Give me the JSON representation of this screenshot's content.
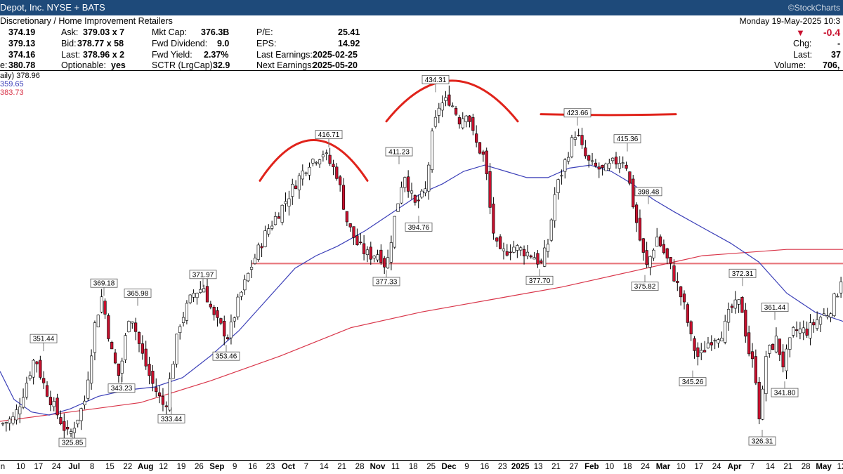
{
  "title_bar": {
    "left": "Depot, Inc.  NYSE + BATS",
    "right": "©StockCharts"
  },
  "header": {
    "sector": "Discretionary / Home Improvement Retailers",
    "datetime": "Monday  19-May-2025  10:3",
    "change_value": "-0.4",
    "left_col": [
      "374.19",
      "379.13",
      "374.16",
      "380.78"
    ],
    "left_labels": [
      "",
      "",
      "",
      "e:"
    ],
    "ask_label": "Ask:",
    "ask": "379.03 x 7",
    "bid_label": "Bid:",
    "bid": "378.77 x 58",
    "last_label": "Last:",
    "last": "378.96 x 2",
    "optionable_label": "Optionable:",
    "optionable": "yes",
    "mktcap_label": "Mkt Cap:",
    "mktcap": "376.3B",
    "fwddiv_label": "Fwd Dividend:",
    "fwddiv": "9.0",
    "fwdyield_label": "Fwd Yield:",
    "fwdyield": "2.37%",
    "sctr_label": "SCTR (LrgCap):",
    "sctr": "32.9",
    "pe_label": "P/E:",
    "pe": "25.41",
    "eps_label": "EPS:",
    "eps": "14.92",
    "lastearn_label": "Last Earnings:",
    "lastearn": "2025-02-25",
    "nextearn_label": "Next Earnings:",
    "nextearn": "2025-05-20",
    "chg_label": "Chg:",
    "chg": "-",
    "right_last_label": "Last:",
    "right_last": "37",
    "volume_label": "Volume:",
    "volume": "706,"
  },
  "legend": {
    "price": "aily) 378.96",
    "sma50": "359.65",
    "sma200": "383.73",
    "sma50_color": "#3b3fb8",
    "sma200_color": "#d9364a"
  },
  "chart_data": {
    "type": "candlestick",
    "ylim": [
      318,
      440
    ],
    "support_level": 379.5,
    "up_color": "#ffffff",
    "down_color": "#c8102e",
    "x_ticks": [
      "n",
      "10",
      "17",
      "24",
      "Jul",
      "8",
      "15",
      "22",
      "Aug",
      "12",
      "19",
      "26",
      "Sep",
      "9",
      "16",
      "23",
      "Oct",
      "7",
      "14",
      "21",
      "28",
      "Nov",
      "11",
      "18",
      "25",
      "Dec",
      "9",
      "16",
      "23",
      "2025",
      "13",
      "21",
      "27",
      "Feb",
      "10",
      "18",
      "24",
      "Mar",
      "10",
      "17",
      "24",
      "Apr",
      "7",
      "14",
      "21",
      "28",
      "May",
      "12"
    ],
    "x_tick_months": [
      "Jul",
      "Aug",
      "Sep",
      "Oct",
      "Nov",
      "Dec",
      "2025",
      "Feb",
      "Mar",
      "Apr",
      "May"
    ],
    "price_path": [
      [
        0,
        328
      ],
      [
        20,
        330
      ],
      [
        30,
        336
      ],
      [
        50,
        350
      ],
      [
        60,
        342
      ],
      [
        80,
        332
      ],
      [
        98,
        324
      ],
      [
        120,
        335
      ],
      [
        135,
        360
      ],
      [
        145,
        369
      ],
      [
        160,
        350
      ],
      [
        170,
        343
      ],
      [
        185,
        365
      ],
      [
        200,
        352
      ],
      [
        215,
        342
      ],
      [
        235,
        333
      ],
      [
        255,
        360
      ],
      [
        275,
        370
      ],
      [
        290,
        372
      ],
      [
        305,
        362
      ],
      [
        325,
        356
      ],
      [
        340,
        368
      ],
      [
        360,
        380
      ],
      [
        380,
        390
      ],
      [
        400,
        397
      ],
      [
        420,
        405
      ],
      [
        440,
        412
      ],
      [
        460,
        415
      ],
      [
        480,
        408
      ],
      [
        495,
        392
      ],
      [
        510,
        385
      ],
      [
        525,
        382
      ],
      [
        540,
        383
      ],
      [
        550,
        378
      ],
      [
        560,
        392
      ],
      [
        575,
        409
      ],
      [
        590,
        398
      ],
      [
        605,
        402
      ],
      [
        615,
        420
      ],
      [
        625,
        430
      ],
      [
        640,
        432
      ],
      [
        655,
        425
      ],
      [
        665,
        429
      ],
      [
        675,
        419
      ],
      [
        690,
        413
      ],
      [
        700,
        392
      ],
      [
        710,
        382
      ],
      [
        730,
        385
      ],
      [
        760,
        382
      ],
      [
        770,
        379
      ],
      [
        780,
        386
      ],
      [
        790,
        402
      ],
      [
        800,
        409
      ],
      [
        810,
        416
      ],
      [
        820,
        422
      ],
      [
        830,
        415
      ],
      [
        840,
        411
      ],
      [
        850,
        410
      ],
      [
        860,
        409
      ],
      [
        875,
        412
      ],
      [
        890,
        413
      ],
      [
        900,
        400
      ],
      [
        910,
        388
      ],
      [
        920,
        378
      ],
      [
        935,
        388
      ],
      [
        945,
        383
      ],
      [
        955,
        378
      ],
      [
        965,
        372
      ],
      [
        975,
        365
      ],
      [
        985,
        354
      ],
      [
        995,
        349
      ],
      [
        1010,
        355
      ],
      [
        1030,
        358
      ],
      [
        1040,
        365
      ],
      [
        1055,
        367
      ],
      [
        1065,
        352
      ],
      [
        1075,
        345
      ],
      [
        1082,
        328
      ],
      [
        1090,
        350
      ],
      [
        1105,
        355
      ],
      [
        1115,
        347
      ],
      [
        1130,
        358
      ],
      [
        1150,
        358
      ],
      [
        1165,
        362
      ],
      [
        1180,
        364
      ],
      [
        1195,
        372
      ],
      [
        1200,
        379
      ]
    ],
    "sma50_path": [
      [
        0,
        345
      ],
      [
        20,
        336
      ],
      [
        45,
        332
      ],
      [
        70,
        331
      ],
      [
        100,
        333
      ],
      [
        140,
        337
      ],
      [
        180,
        339
      ],
      [
        220,
        340
      ],
      [
        260,
        343
      ],
      [
        300,
        350
      ],
      [
        340,
        358
      ],
      [
        380,
        368
      ],
      [
        420,
        378
      ],
      [
        450,
        382
      ],
      [
        480,
        385
      ],
      [
        520,
        390
      ],
      [
        560,
        396
      ],
      [
        600,
        402
      ],
      [
        630,
        405
      ],
      [
        660,
        409
      ],
      [
        690,
        411
      ],
      [
        720,
        409
      ],
      [
        750,
        407
      ],
      [
        780,
        407
      ],
      [
        810,
        410
      ],
      [
        840,
        411
      ],
      [
        870,
        409
      ],
      [
        900,
        405
      ],
      [
        930,
        400
      ],
      [
        960,
        396
      ],
      [
        1000,
        391
      ],
      [
        1040,
        386
      ],
      [
        1080,
        380
      ],
      [
        1120,
        370
      ],
      [
        1160,
        364
      ],
      [
        1200,
        361
      ]
    ],
    "sma200_path": [
      [
        0,
        329
      ],
      [
        100,
        332
      ],
      [
        200,
        335
      ],
      [
        300,
        342
      ],
      [
        400,
        350
      ],
      [
        500,
        359
      ],
      [
        600,
        364
      ],
      [
        700,
        368
      ],
      [
        800,
        372
      ],
      [
        900,
        377
      ],
      [
        960,
        380
      ],
      [
        1000,
        382
      ],
      [
        1060,
        383
      ],
      [
        1120,
        384
      ],
      [
        1200,
        384
      ]
    ],
    "pivot_labels": [
      {
        "x": 62,
        "price": 351.44,
        "label": "351.44",
        "pos": "above"
      },
      {
        "x": 148,
        "price": 369.18,
        "label": "369.18",
        "pos": "above"
      },
      {
        "x": 196,
        "price": 365.98,
        "label": "365.98",
        "pos": "above"
      },
      {
        "x": 289,
        "price": 371.97,
        "label": "371.97",
        "pos": "above"
      },
      {
        "x": 468,
        "price": 416.71,
        "label": "416.71",
        "pos": "above"
      },
      {
        "x": 568,
        "price": 411.23,
        "label": "411.23",
        "pos": "above"
      },
      {
        "x": 620,
        "price": 434.31,
        "label": "434.31",
        "pos": "above"
      },
      {
        "x": 822,
        "price": 423.66,
        "label": "423.66",
        "pos": "above"
      },
      {
        "x": 893,
        "price": 415.36,
        "label": "415.36",
        "pos": "above"
      },
      {
        "x": 923,
        "price": 398.48,
        "label": "398.48",
        "pos": "above"
      },
      {
        "x": 1057,
        "price": 372.31,
        "label": "372.31",
        "pos": "above"
      },
      {
        "x": 1103,
        "price": 361.44,
        "label": "361.44",
        "pos": "above"
      },
      {
        "x": 173,
        "price": 343.23,
        "label": "343.23",
        "pos": "below"
      },
      {
        "x": 244,
        "price": 333.44,
        "label": "333.44",
        "pos": "below"
      },
      {
        "x": 322,
        "price": 353.46,
        "label": "353.46",
        "pos": "below"
      },
      {
        "x": 103,
        "price": 325.85,
        "label": "325.85",
        "pos": "below"
      },
      {
        "x": 550,
        "price": 377.33,
        "label": "377.33",
        "pos": "below"
      },
      {
        "x": 596,
        "price": 394.76,
        "label": "394.76",
        "pos": "below"
      },
      {
        "x": 768,
        "price": 377.7,
        "label": "377.70",
        "pos": "below"
      },
      {
        "x": 918,
        "price": 375.82,
        "label": "375.82",
        "pos": "below"
      },
      {
        "x": 986,
        "price": 345.26,
        "label": "345.26",
        "pos": "below"
      },
      {
        "x": 1117,
        "price": 341.8,
        "label": "341.80",
        "pos": "below"
      },
      {
        "x": 1085,
        "price": 326.31,
        "label": "326.31",
        "pos": "below"
      }
    ],
    "arcs": [
      {
        "x1": 370,
        "x2": 523,
        "peak_price": 419
      },
      {
        "x1": 550,
        "x2": 737,
        "peak_price": 438
      },
      {
        "x1": 770,
        "x2": 962,
        "peak_price": 427
      }
    ]
  }
}
